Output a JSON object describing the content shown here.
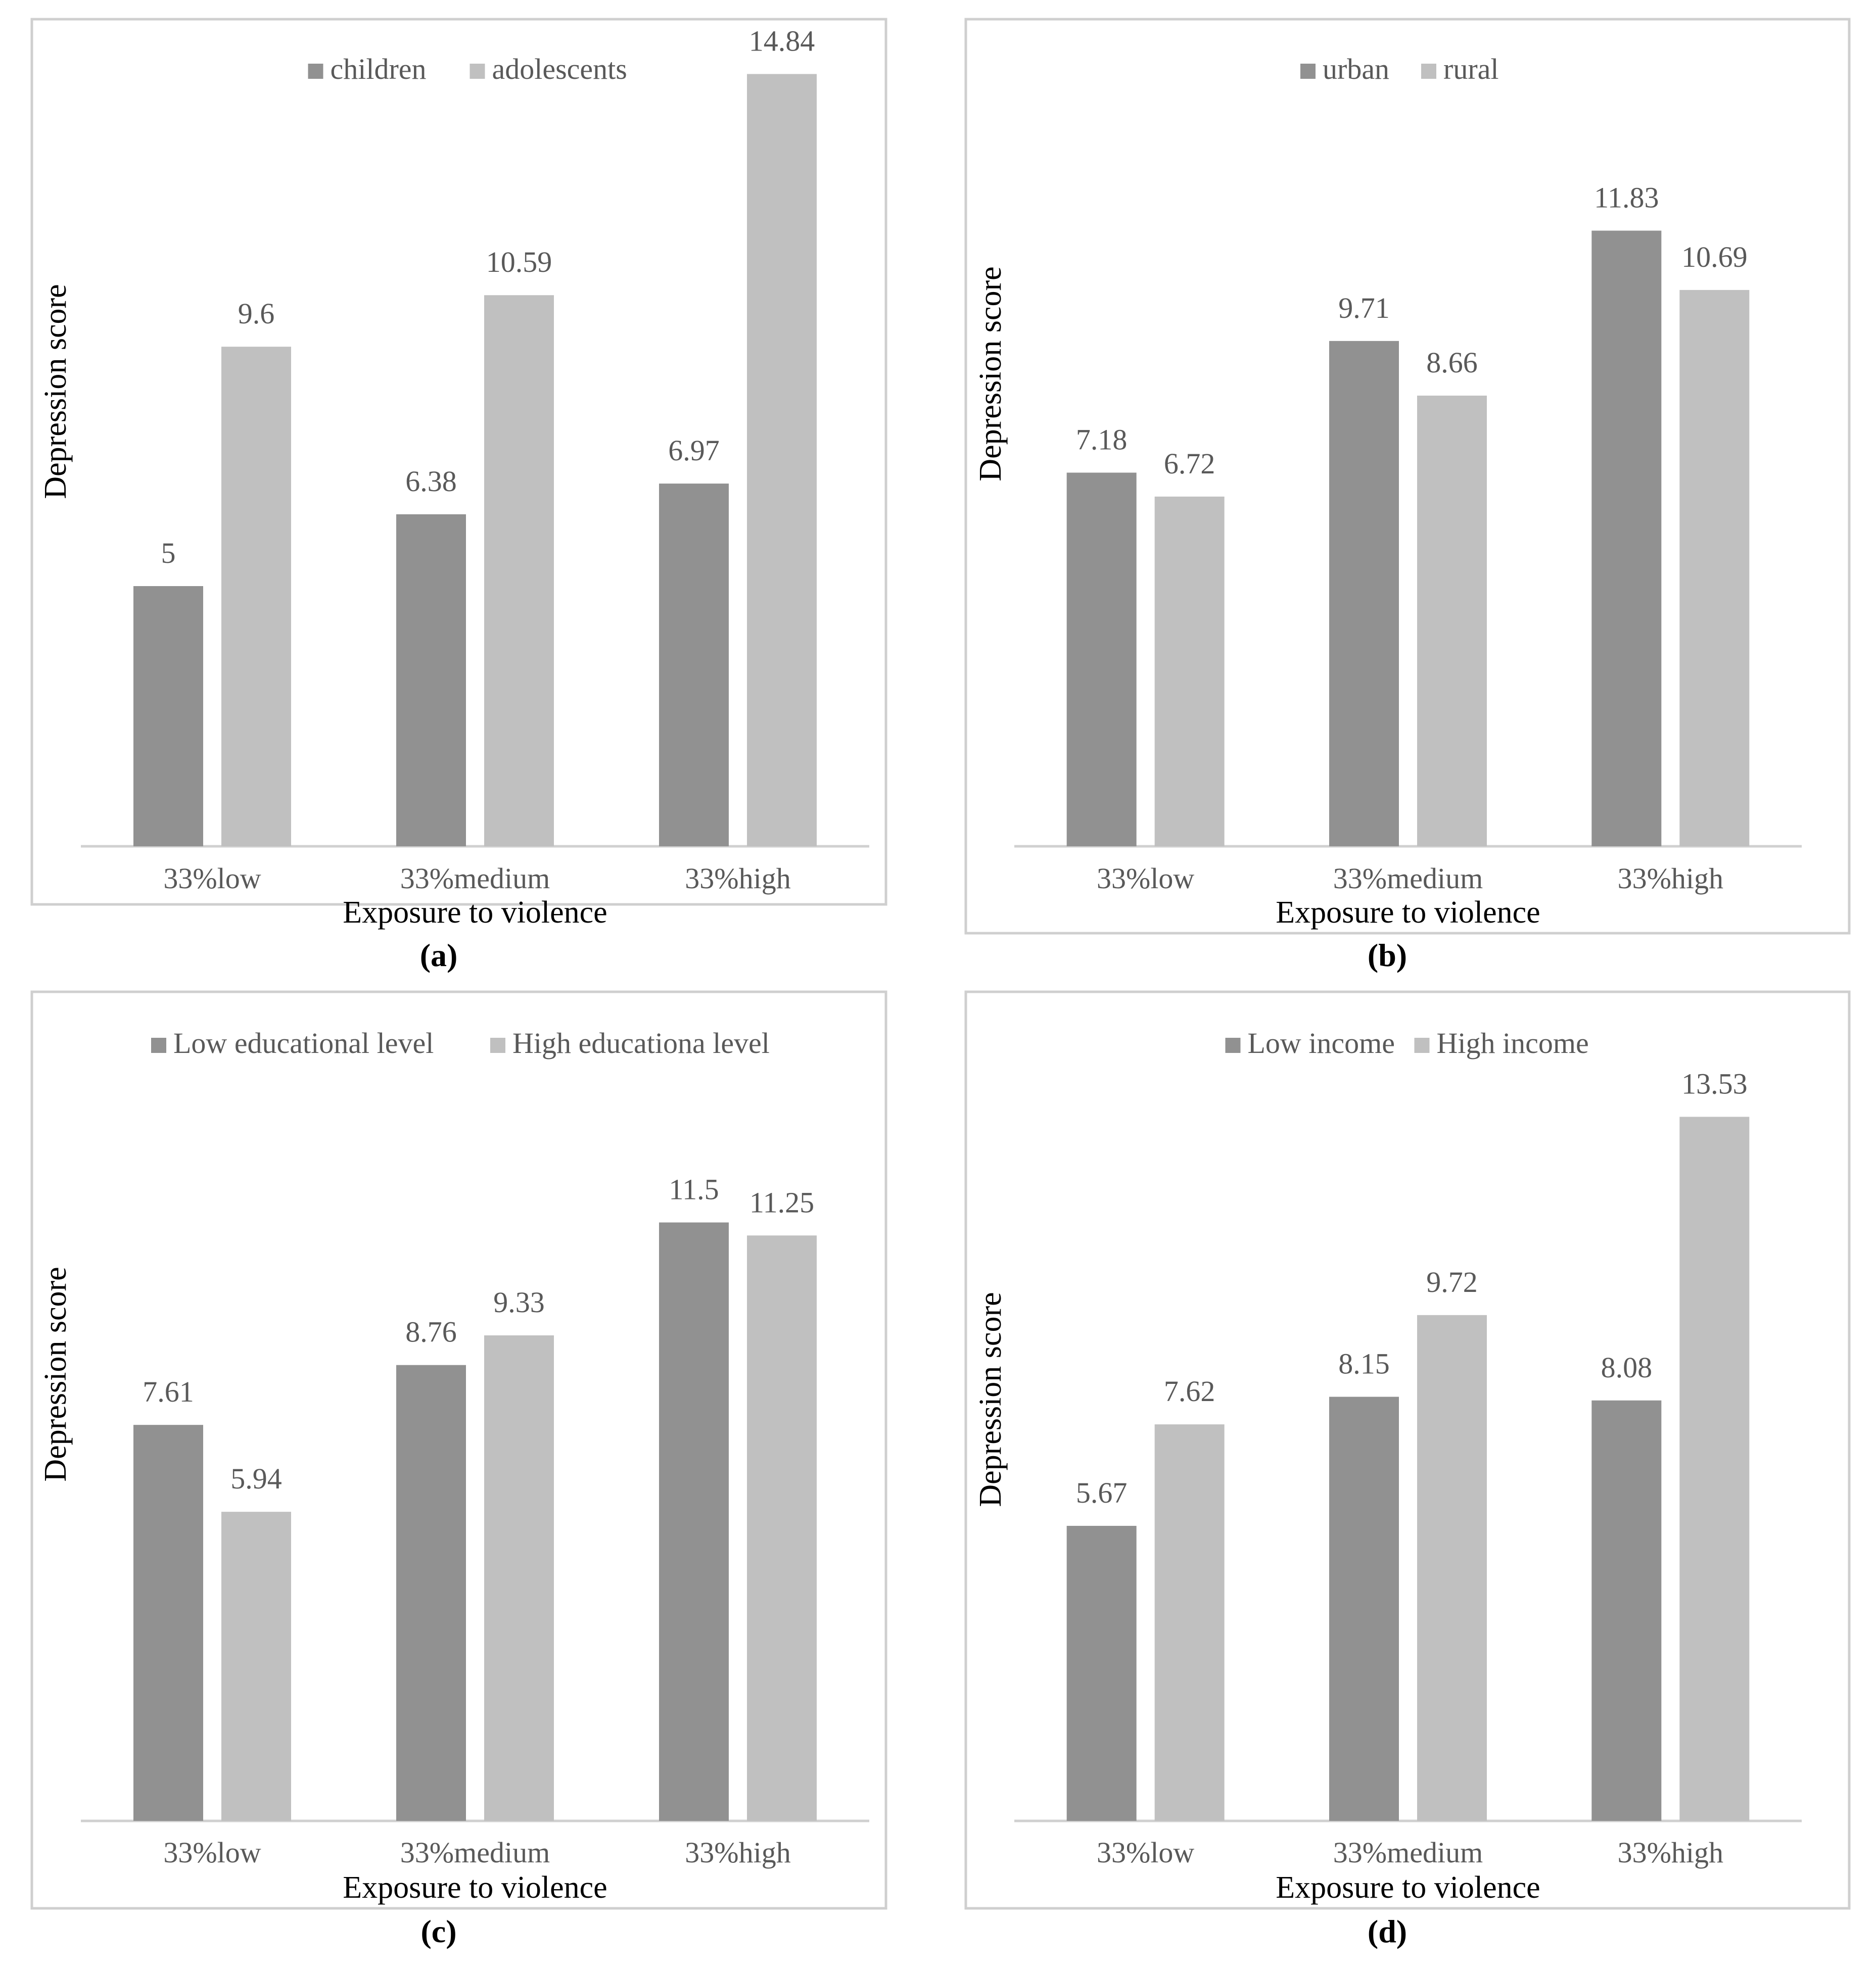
{
  "chart_data": [
    {
      "type": "bar",
      "panel_label": "(a)",
      "categories": [
        "33%low",
        "33%medium",
        "33%high"
      ],
      "series": [
        {
          "name": "children",
          "values": [
            5,
            6.38,
            6.97
          ],
          "labels": [
            "5",
            "6.38",
            "6.97"
          ]
        },
        {
          "name": "adolescents",
          "values": [
            9.6,
            10.59,
            14.84
          ],
          "labels": [
            "9.6",
            "10.59",
            "14.84"
          ]
        }
      ],
      "xlabel": "Exposure to violence",
      "ylabel": "Depression score",
      "ylim": [
        0,
        15
      ],
      "grid": false,
      "legend": "top-center"
    },
    {
      "type": "bar",
      "panel_label": "(b)",
      "categories": [
        "33%low",
        "33%medium",
        "33%high"
      ],
      "series": [
        {
          "name": "urban",
          "values": [
            7.18,
            9.71,
            11.83
          ],
          "labels": [
            "7.18",
            "9.71",
            "11.83"
          ]
        },
        {
          "name": "rural",
          "values": [
            6.72,
            8.66,
            10.69
          ],
          "labels": [
            "6.72",
            "8.66",
            "10.69"
          ]
        }
      ],
      "xlabel": "Exposure to violence",
      "ylabel": "Depression score",
      "ylim": [
        0,
        13
      ],
      "grid": false,
      "legend": "top-center"
    },
    {
      "type": "bar",
      "panel_label": "(c)",
      "categories": [
        "33%low",
        "33%medium",
        "33%high"
      ],
      "series": [
        {
          "name": "Low educational level",
          "values": [
            7.61,
            8.76,
            11.5
          ],
          "labels": [
            "7.61",
            "8.76",
            "11.5"
          ]
        },
        {
          "name": "High educationa level",
          "values": [
            5.94,
            9.33,
            11.25
          ],
          "labels": [
            "5.94",
            "9.33",
            "11.25"
          ]
        }
      ],
      "xlabel": "Exposure to violence",
      "ylabel": "Depression score",
      "ylim": [
        0,
        13
      ],
      "grid": false,
      "legend": "top-center"
    },
    {
      "type": "bar",
      "panel_label": "(d)",
      "categories": [
        "33%low",
        "33%medium",
        "33%high"
      ],
      "series": [
        {
          "name": "Low income",
          "values": [
            5.67,
            8.15,
            8.08
          ],
          "labels": [
            "5.67",
            "8.15",
            "8.08"
          ]
        },
        {
          "name": "High income",
          "values": [
            7.62,
            9.72,
            13.53
          ],
          "labels": [
            "7.62",
            "9.72",
            "13.53"
          ]
        }
      ],
      "xlabel": "Exposure to violence",
      "ylabel": "Depression score",
      "ylim": [
        0,
        15
      ],
      "grid": false,
      "legend": "top-center"
    }
  ],
  "colors": {
    "series_1": "#919191",
    "series_2": "#c0c0c0",
    "axis": "#d0d0d0",
    "frame": "#cfcfcf",
    "text": "#595959",
    "title_text": "#000000"
  }
}
